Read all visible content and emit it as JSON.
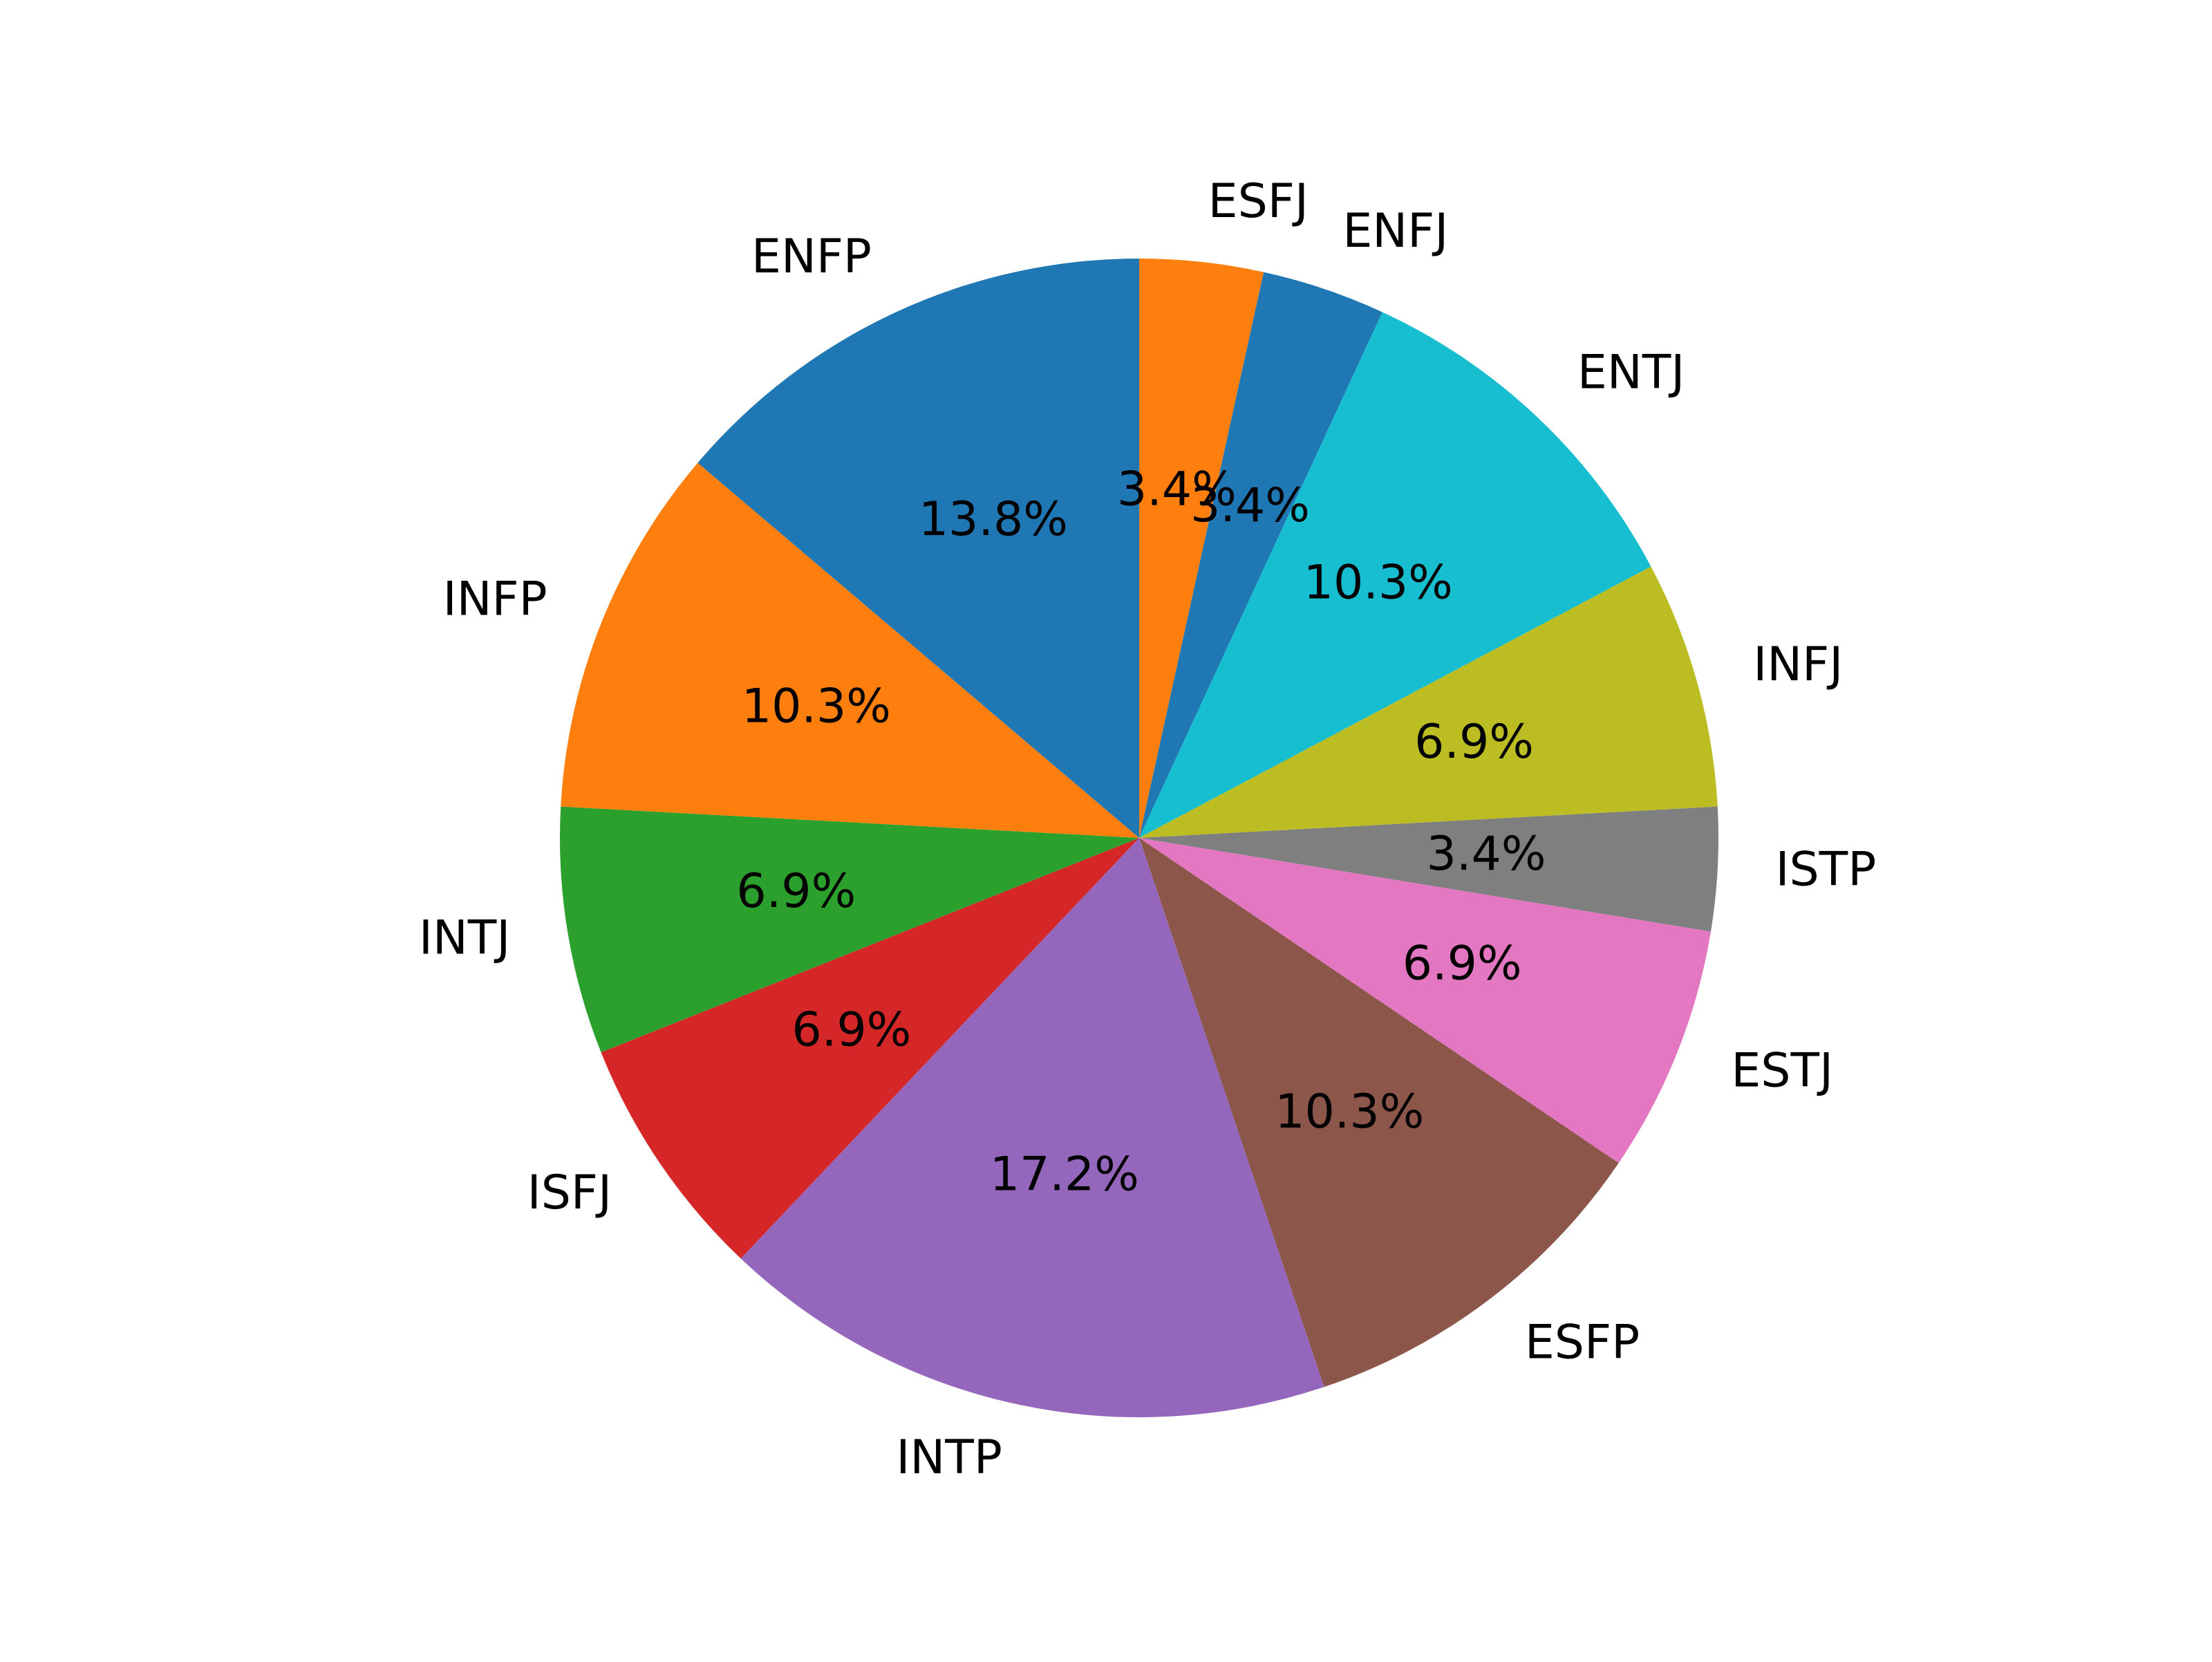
{
  "chart_data": {
    "type": "pie",
    "title": "",
    "start_angle_deg": 90,
    "direction": "clockwise",
    "slices": [
      {
        "label": "ESFJ",
        "value": 1,
        "percent_label": "3.4%",
        "color": "#ff7f0e"
      },
      {
        "label": "ENFJ",
        "value": 1,
        "percent_label": "3.4%",
        "color": "#1f77b4"
      },
      {
        "label": "ENTJ",
        "value": 3,
        "percent_label": "10.3%",
        "color": "#17becf"
      },
      {
        "label": "INFJ",
        "value": 2,
        "percent_label": "6.9%",
        "color": "#bcbd22"
      },
      {
        "label": "ISTP",
        "value": 1,
        "percent_label": "3.4%",
        "color": "#7f7f7f"
      },
      {
        "label": "ESTJ",
        "value": 2,
        "percent_label": "6.9%",
        "color": "#e377c2"
      },
      {
        "label": "ESFP",
        "value": 3,
        "percent_label": "10.3%",
        "color": "#8c564b"
      },
      {
        "label": "INTP",
        "value": 5,
        "percent_label": "17.2%",
        "color": "#9467bd"
      },
      {
        "label": "ISFJ",
        "value": 2,
        "percent_label": "6.9%",
        "color": "#d62728"
      },
      {
        "label": "INTJ",
        "value": 2,
        "percent_label": "6.9%",
        "color": "#2ca02c"
      },
      {
        "label": "INFP",
        "value": 3,
        "percent_label": "10.3%",
        "color": "#ff7f0e"
      },
      {
        "label": "ENFP",
        "value": 4,
        "percent_label": "13.8%",
        "color": "#1f77b4"
      }
    ]
  }
}
